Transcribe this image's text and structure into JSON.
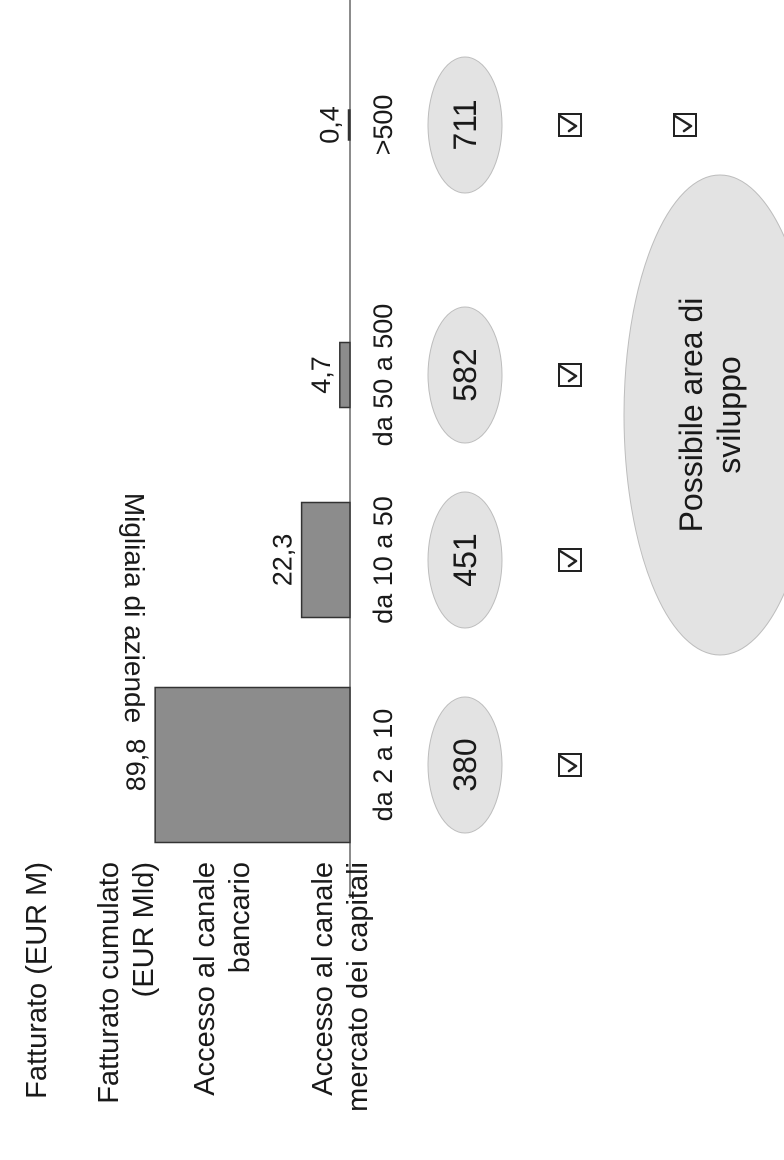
{
  "chart_data": {
    "type": "bar",
    "ylabel": "Migliaia di aziende",
    "categories": [
      "da 2 a 10",
      "da 10 a 50",
      "da 50 a 500",
      ">500"
    ],
    "values": [
      89.8,
      22.3,
      4.7,
      0.4
    ],
    "value_labels": [
      "89,8",
      "22,3",
      "4,7",
      "0,4"
    ],
    "bar_color": "#8c8c8c",
    "ylim": [
      0,
      100
    ]
  },
  "table": {
    "row_labels": {
      "fatturato": "Fatturato (EUR M)",
      "cumulato": "Fatturato cumulato\n(EUR Mld)",
      "bancario": "Accesso al canale\nbancario",
      "mercato": "Accesso al canale\nmercato dei capitali"
    },
    "cumulato_values": [
      "380",
      "451",
      "582",
      "711"
    ],
    "bancario_checks": [
      true,
      true,
      true,
      true
    ],
    "mercato_checks": [
      false,
      false,
      false,
      true
    ],
    "note": "Possibile area di\nsviluppo"
  },
  "colors": {
    "bubble_fill": "#e3e3e3",
    "axis": "#666666"
  }
}
